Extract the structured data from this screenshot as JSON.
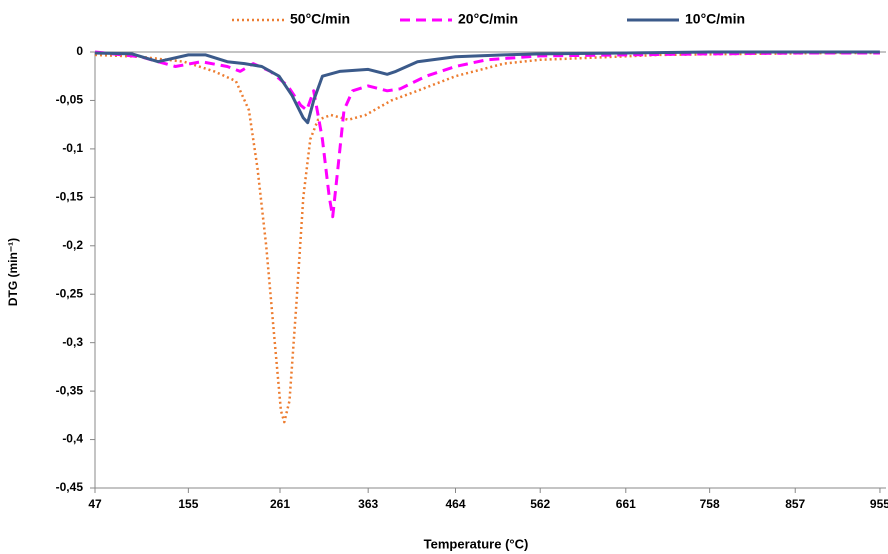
{
  "chart_data": {
    "type": "line",
    "x_label": "Temperature (°C)",
    "y_label": "DTG (min⁻¹)",
    "xlim": [
      47,
      962
    ],
    "xticks": [
      47,
      155,
      261,
      363,
      464,
      562,
      661,
      758,
      857,
      955
    ],
    "ylim": [
      -0.45,
      0
    ],
    "yticks": [
      {
        "value": 0,
        "label": "0"
      },
      {
        "value": -0.05,
        "label": "-0,05"
      },
      {
        "value": -0.1,
        "label": "-0,1"
      },
      {
        "value": -0.15,
        "label": "-0,15"
      },
      {
        "value": -0.2,
        "label": "-0,2"
      },
      {
        "value": -0.25,
        "label": "-0,25"
      },
      {
        "value": -0.3,
        "label": "-0,3"
      },
      {
        "value": -0.35,
        "label": "-0,35"
      },
      {
        "value": -0.4,
        "label": "-0,4"
      },
      {
        "value": -0.45,
        "label": "-0,45"
      }
    ],
    "legend": "top",
    "series": [
      {
        "name": "50°C/min",
        "color": "#ed7d31",
        "style": "dotted",
        "x": [
          47,
          100,
          150,
          185,
          210,
          225,
          235,
          245,
          255,
          262,
          266,
          272,
          280,
          288,
          296,
          305,
          320,
          340,
          360,
          390,
          420,
          464,
          520,
          562,
          620,
          700,
          800,
          900,
          955
        ],
        "values": [
          -0.003,
          -0.005,
          -0.01,
          -0.02,
          -0.03,
          -0.06,
          -0.12,
          -0.2,
          -0.3,
          -0.37,
          -0.382,
          -0.36,
          -0.26,
          -0.15,
          -0.09,
          -0.07,
          -0.065,
          -0.07,
          -0.065,
          -0.05,
          -0.04,
          -0.025,
          -0.012,
          -0.008,
          -0.006,
          -0.003,
          -0.002,
          -0.001,
          -0.001
        ]
      },
      {
        "name": "20°C/min",
        "color": "#ff00ff",
        "style": "dashed",
        "x": [
          47,
          100,
          140,
          170,
          200,
          215,
          230,
          250,
          270,
          285,
          292,
          300,
          310,
          318,
          322,
          328,
          335,
          345,
          363,
          385,
          400,
          430,
          464,
          500,
          562,
          661,
          758,
          857,
          955
        ],
        "values": [
          0,
          -0.005,
          -0.015,
          -0.01,
          -0.015,
          -0.02,
          -0.012,
          -0.02,
          -0.035,
          -0.055,
          -0.06,
          -0.04,
          -0.09,
          -0.15,
          -0.17,
          -0.12,
          -0.06,
          -0.04,
          -0.035,
          -0.04,
          -0.038,
          -0.025,
          -0.015,
          -0.008,
          -0.004,
          -0.003,
          -0.002,
          -0.001,
          -0.001
        ]
      },
      {
        "name": "10°C/min",
        "color": "#3b5a8a",
        "style": "solid",
        "x": [
          47,
          90,
          120,
          155,
          175,
          200,
          220,
          240,
          260,
          275,
          288,
          293,
          300,
          310,
          330,
          363,
          385,
          395,
          420,
          464,
          520,
          562,
          661,
          758,
          857,
          955
        ],
        "values": [
          -0.001,
          -0.002,
          -0.01,
          -0.003,
          -0.003,
          -0.01,
          -0.012,
          -0.015,
          -0.025,
          -0.045,
          -0.068,
          -0.073,
          -0.05,
          -0.025,
          -0.02,
          -0.018,
          -0.023,
          -0.02,
          -0.01,
          -0.005,
          -0.003,
          -0.002,
          -0.001,
          0,
          0,
          0
        ]
      }
    ]
  }
}
